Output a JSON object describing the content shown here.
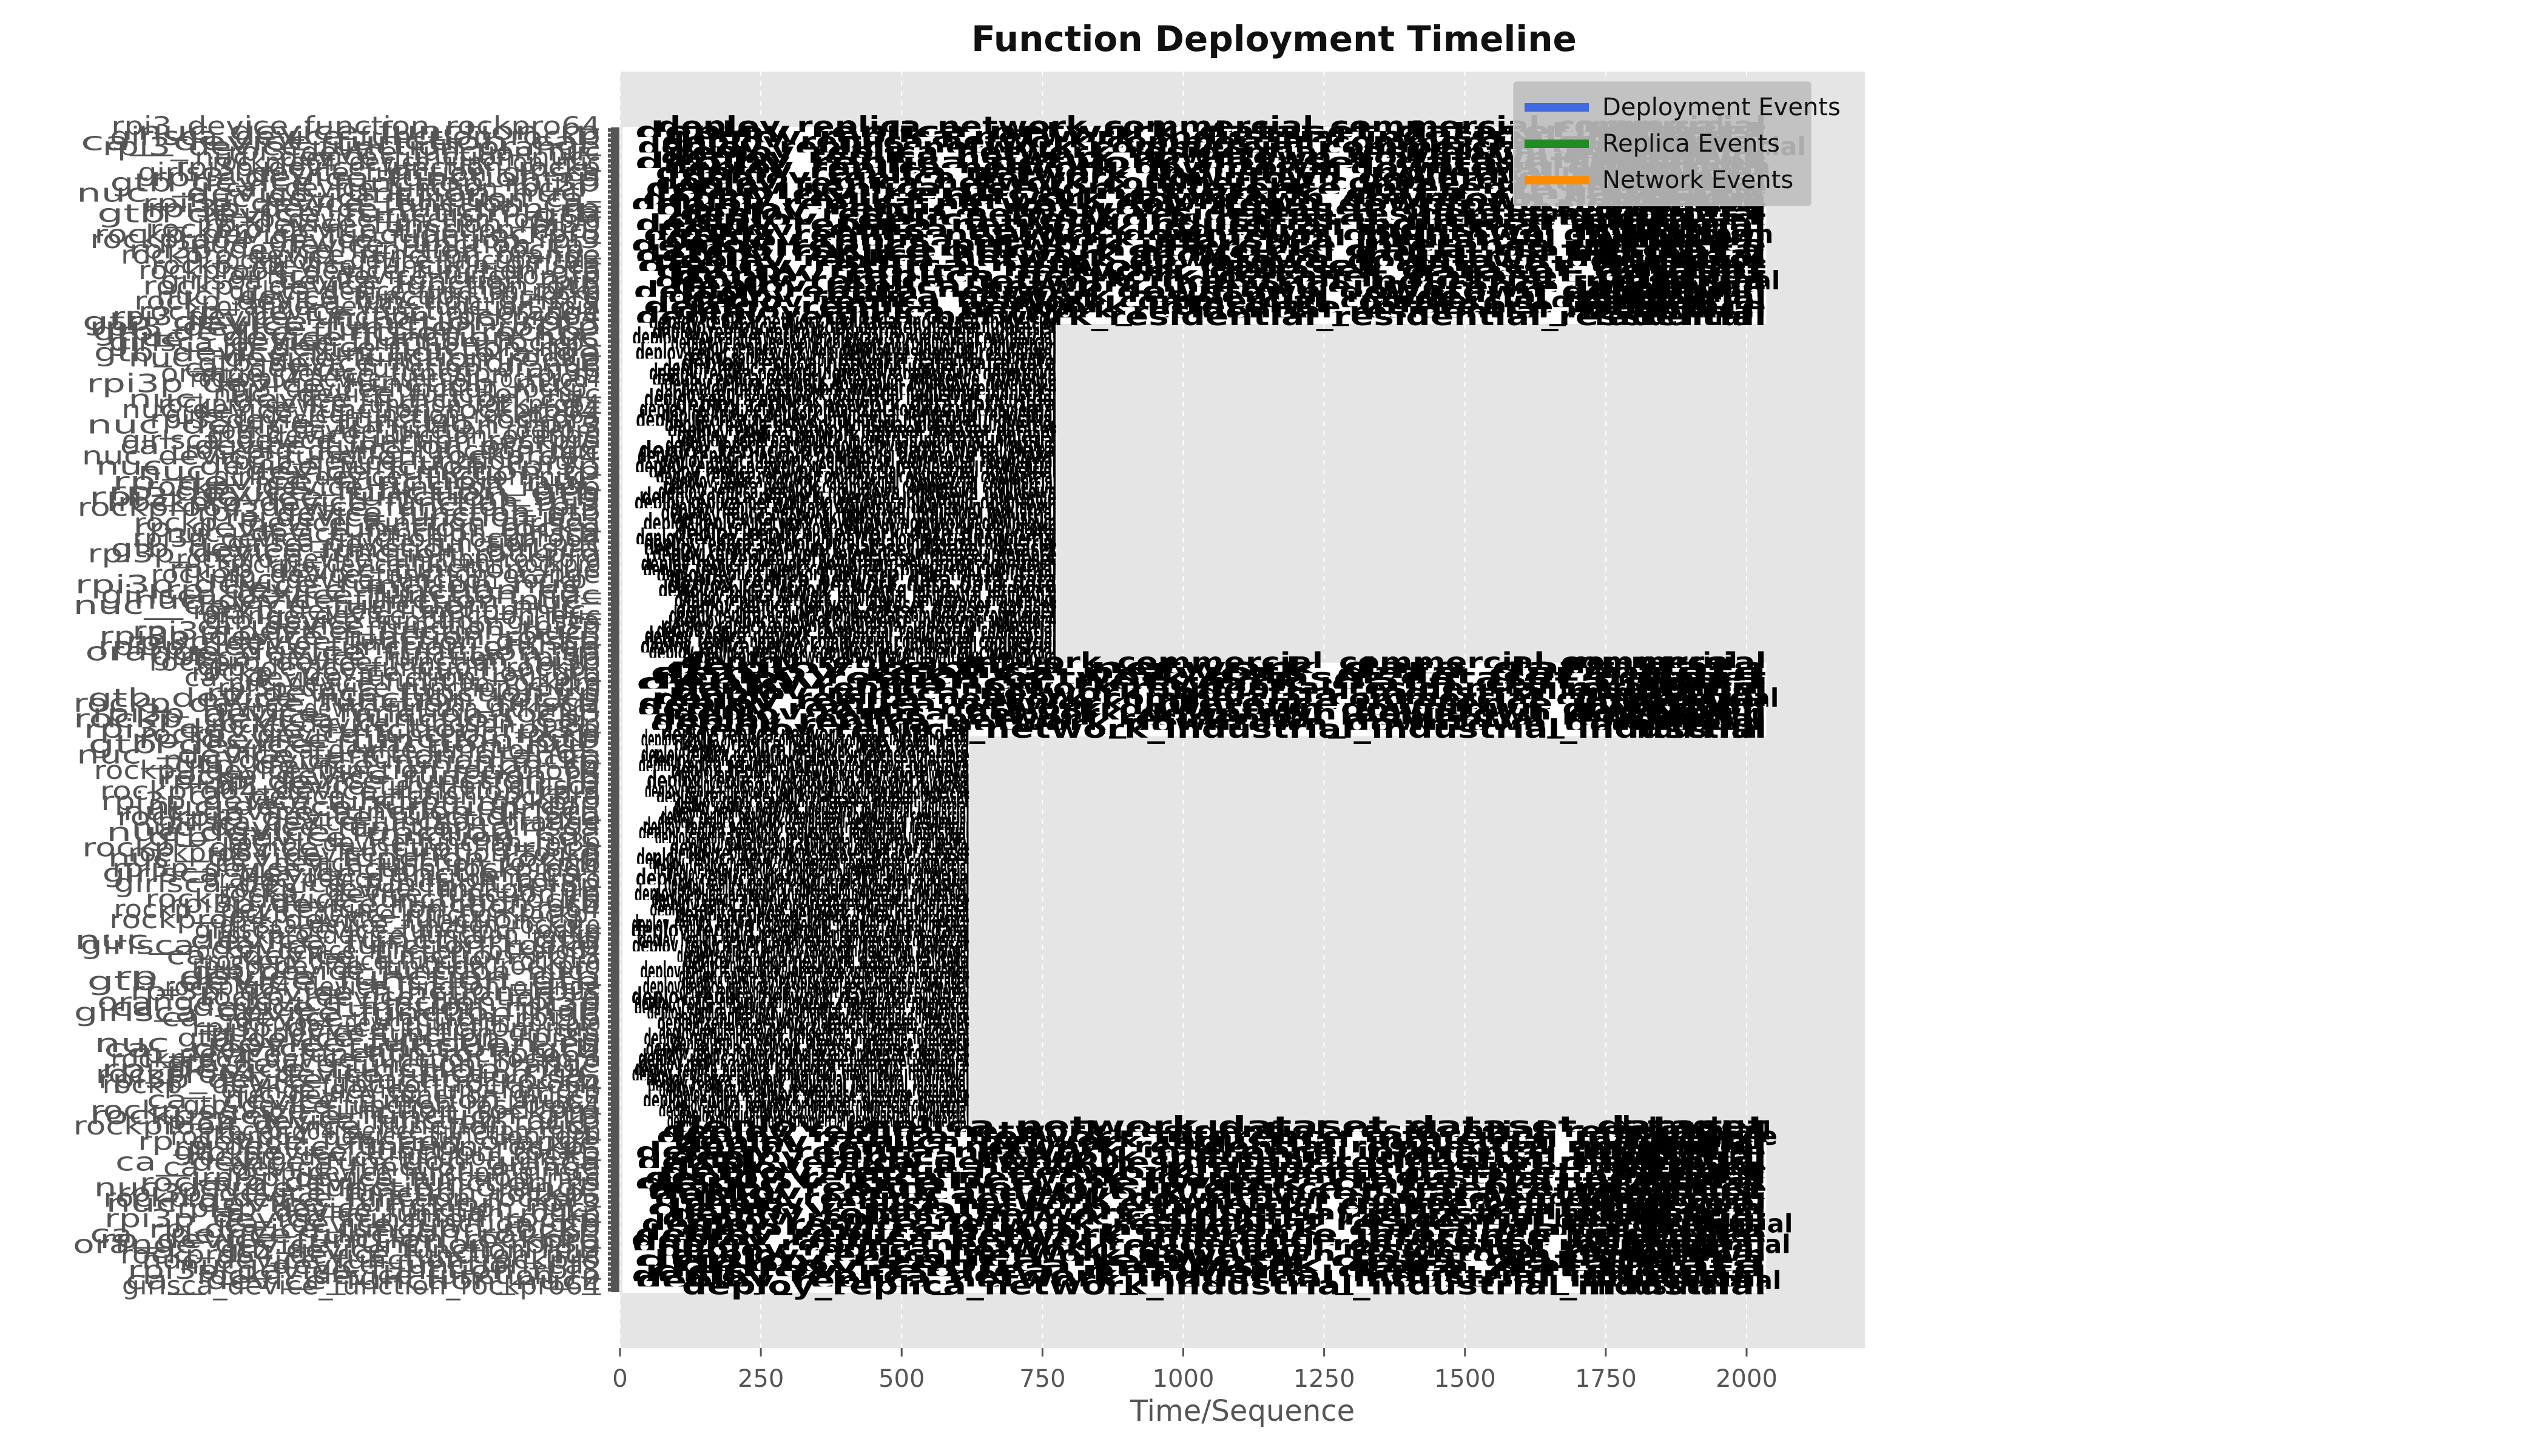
{
  "chart_data": {
    "type": "timeline",
    "title": "Function Deployment Timeline",
    "xlabel": "Time/Sequence",
    "ylabel": "",
    "xlim": [
      0,
      2210
    ],
    "xticks": [
      0,
      250,
      500,
      750,
      1000,
      1250,
      1500,
      1750,
      2000
    ],
    "grid": true,
    "legend_position": "top-right",
    "legend": [
      {
        "name": "Deployment Events",
        "color": "#4169e1"
      },
      {
        "name": "Replica Events",
        "color": "#228b22"
      },
      {
        "name": "Network Events",
        "color": "#ff8c00"
      }
    ],
    "groups": [
      {
        "count": 38,
        "end": 2035
      },
      {
        "count": 66,
        "end": 775
      },
      {
        "count": 14,
        "end": 2035
      },
      {
        "count": 76,
        "end": 620
      },
      {
        "count": 32,
        "end": 2035
      }
    ],
    "visible_label_fragments": [
      "rockpro",
      "rpi3p",
      "rockp",
      "nuc",
      "nuc_",
      "rpi3",
      "rockpro64",
      "orange",
      "girlsca",
      "gtb",
      "rp",
      "rockp_",
      "ca_"
    ],
    "annotation_suffixes": [
      "industrial",
      "residential",
      "downtown",
      "commercial",
      "data",
      "inference",
      "dataset"
    ]
  }
}
